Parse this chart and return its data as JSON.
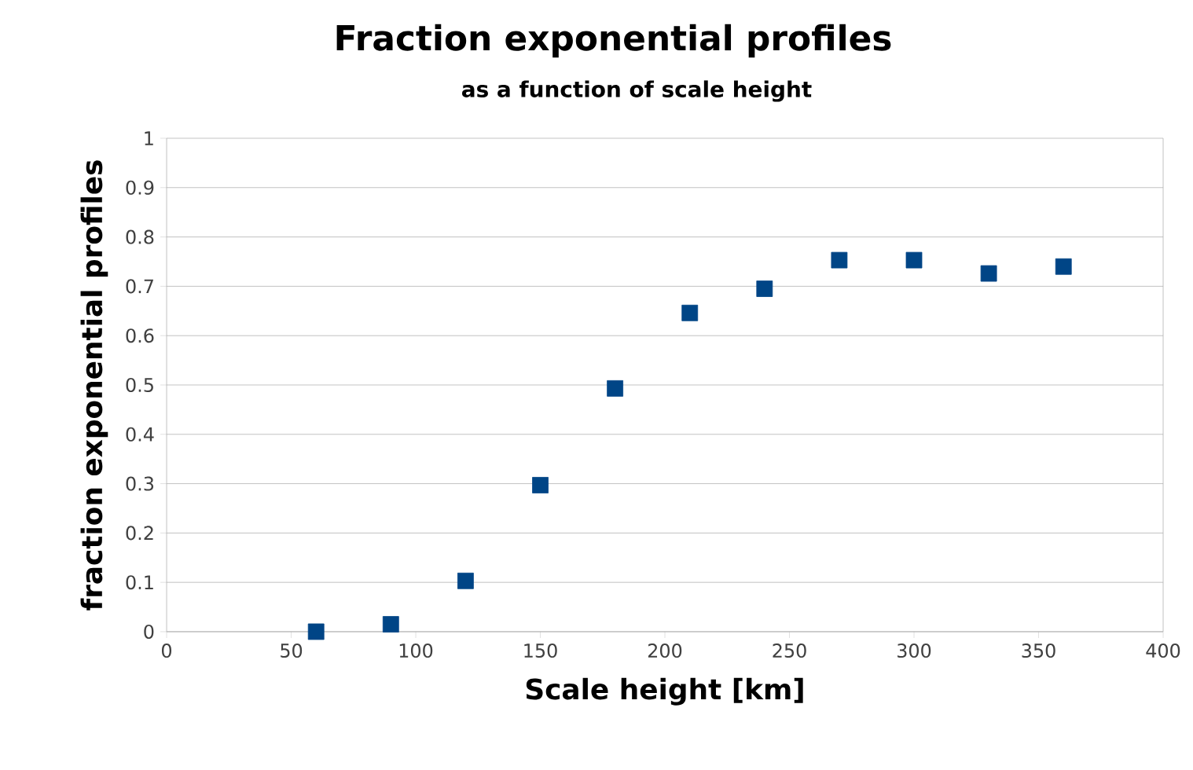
{
  "chart_data": {
    "type": "scatter",
    "title": "Fraction exponential profiles",
    "subtitle": "as a function of scale height",
    "xlabel": "Scale height [km]",
    "ylabel": "fraction exponential profiles",
    "x": [
      60,
      90,
      120,
      150,
      180,
      210,
      240,
      270,
      300,
      330,
      360
    ],
    "series": [
      {
        "color": "#004586",
        "values": [
          0.0,
          0.015,
          0.103,
          0.297,
          0.493,
          0.646,
          0.695,
          0.753,
          0.753,
          0.726,
          0.74
        ]
      }
    ],
    "xlim": [
      0,
      400
    ],
    "xticks": [
      0,
      50,
      100,
      150,
      200,
      250,
      300,
      350,
      400
    ],
    "ylim": [
      0,
      1
    ],
    "yticks": [
      0,
      0.1,
      0.2,
      0.3,
      0.4,
      0.5,
      0.6,
      0.7,
      0.8,
      0.9,
      1
    ],
    "grid": "y",
    "marker": "square"
  }
}
